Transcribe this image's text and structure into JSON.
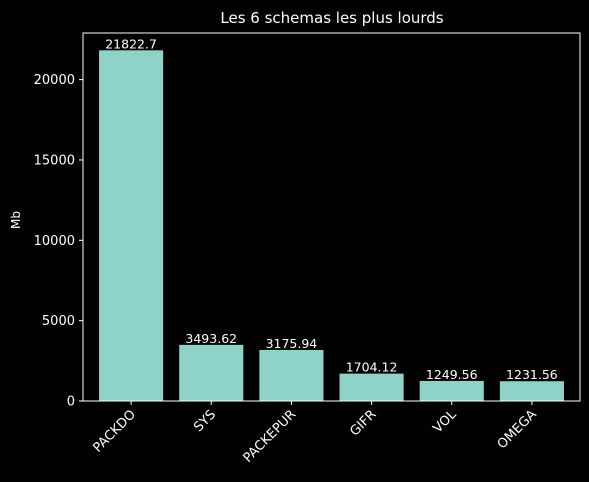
{
  "chart_data": {
    "type": "bar",
    "title": "Les 6 schemas les plus lourds",
    "xlabel": "",
    "ylabel": "Mb",
    "categories": [
      "PACKDO",
      "SYS",
      "PACKEPUR",
      "GIFR",
      "VOL",
      "OMEGA"
    ],
    "values": [
      21822.7,
      3493.62,
      3175.94,
      1704.12,
      1249.56,
      1231.56
    ],
    "value_labels": [
      "21822.7",
      "3493.62",
      "3175.94",
      "1704.12",
      "1249.56",
      "1231.56"
    ],
    "ylim": [
      0,
      22900
    ],
    "yticks": [
      0,
      5000,
      10000,
      15000,
      20000
    ],
    "ytick_labels": [
      "0",
      "5000",
      "10000",
      "15000",
      "20000"
    ],
    "bar_color": "#8dd3c7",
    "background": "#000000",
    "foreground": "#ffffff",
    "xtick_rotation": 45,
    "grid": false
  }
}
